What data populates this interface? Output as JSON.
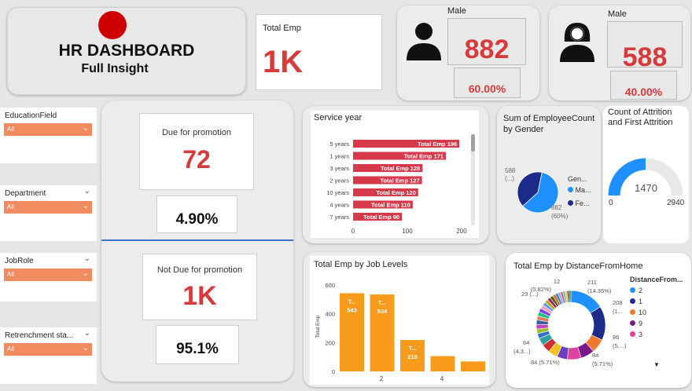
{
  "header": {
    "title": "HR DASHBOARD",
    "subtitle": "Full Insight",
    "logo_color": "#cc0000"
  },
  "total_emp": {
    "label": "Total Emp",
    "value": "1K"
  },
  "male_card": {
    "label": "Male",
    "value": "882",
    "pct": "60.00%"
  },
  "female_card": {
    "label": "Male",
    "value": "588",
    "pct": "40.00%"
  },
  "slicers": [
    {
      "title": "EducationField",
      "value": "All"
    },
    {
      "title": "Department",
      "value": "All"
    },
    {
      "title": "JobRole",
      "value": "All"
    },
    {
      "title": "Retrenchment sta...",
      "value": "All"
    }
  ],
  "promotion": {
    "due_label": "Due for promotion",
    "due_value": "72",
    "due_pct": "4.90%",
    "not_due_label": "Not Due for promotion",
    "not_due_value": "1K",
    "not_due_pct": "95.1%"
  },
  "service_year": {
    "title": "Service year",
    "bar_color": "#d63a4a",
    "bars": [
      {
        "category": "5 years",
        "label": "Total Emp 196",
        "value": 196
      },
      {
        "category": "1 years",
        "label": "Total Emp 171",
        "value": 171
      },
      {
        "category": "3 years",
        "label": "Total Emp 128",
        "value": 128
      },
      {
        "category": "2 years",
        "label": "Total Emp 127",
        "value": 127
      },
      {
        "category": "10 years",
        "label": "Total Emp 120",
        "value": 120
      },
      {
        "category": "4 years",
        "label": "Total Emp 110",
        "value": 110
      },
      {
        "category": "7 years",
        "label": "Total Emp 90",
        "value": 90
      }
    ],
    "ticks": [
      "0",
      "100",
      "200"
    ]
  },
  "gender_pie": {
    "title": "Sum of EmployeeCount by Gender",
    "label_female": "588",
    "label_female2": "(...)",
    "label_male": "882",
    "label_male2": "(60%)",
    "legend_title": "Gen...",
    "legend": [
      {
        "name": "Ma...",
        "color": "#1e90ff"
      },
      {
        "name": "Fe...",
        "color": "#1c2a8a"
      }
    ]
  },
  "attrition": {
    "title": "Count of Attrition and First Attrition",
    "value": "1470",
    "min": "0",
    "max": "2940",
    "fraction": 0.5,
    "color": "#1e90ff"
  },
  "job_levels": {
    "title": "Total Emp by Job Levels",
    "ylabel": "Total Emp",
    "bar_color": "#f89a1c",
    "bars": [
      {
        "label1": "T...",
        "label2": "543",
        "value": 543
      },
      {
        "label1": "T...",
        "label2": "534",
        "value": 534
      },
      {
        "label1": "T...",
        "label2": "218",
        "value": 218
      },
      {
        "label1": "",
        "label2": "",
        "value": 106
      },
      {
        "label1": "",
        "label2": "",
        "value": 69
      }
    ],
    "yticks": [
      "0",
      "200",
      "400",
      "600"
    ],
    "xticks": [
      "2",
      "4"
    ]
  },
  "distance": {
    "title": "Total Emp by DistanceFromHome",
    "legend_title": "DistanceFrom...",
    "legend": [
      {
        "name": "2",
        "color": "#1e90ff"
      },
      {
        "name": "1",
        "color": "#1c2a8a"
      },
      {
        "name": "10",
        "color": "#f07830"
      },
      {
        "name": "9",
        "color": "#7a1a8a"
      },
      {
        "name": "3",
        "color": "#e040a0"
      }
    ],
    "labels": [
      {
        "text": "12",
        "id": "l1"
      },
      {
        "text": "(0.82%)",
        "id": "l2"
      },
      {
        "text": "211",
        "id": "l3"
      },
      {
        "text": "(14.35%)",
        "id": "l4"
      },
      {
        "text": "208",
        "id": "l5"
      },
      {
        "text": "(1...",
        "id": "l6"
      },
      {
        "text": "23 (...)",
        "id": "l7"
      },
      {
        "text": "86",
        "id": "l8"
      },
      {
        "text": "(5....)",
        "id": "l9"
      },
      {
        "text": "64",
        "id": "l10"
      },
      {
        "text": "(4.3...)",
        "id": "l11"
      },
      {
        "text": "84",
        "id": "l12"
      },
      {
        "text": "(5.71%)",
        "id": "l13"
      },
      {
        "text": "84 (5.71%)",
        "id": "l14"
      }
    ],
    "slices": [
      211,
      208,
      86,
      84,
      84,
      64,
      59,
      52,
      46,
      30,
      29,
      28,
      27,
      26,
      25,
      24,
      23,
      22,
      21,
      20,
      19,
      18,
      16,
      16,
      15,
      14,
      12,
      12,
      12
    ],
    "colors": [
      "#1e90ff",
      "#1c2a8a",
      "#f07830",
      "#7a1a8a",
      "#e040a0",
      "#6a40c0",
      "#f0c020",
      "#d03030",
      "#30a0a0",
      "#3070d0",
      "#a0c030",
      "#c040c0",
      "#4060a0",
      "#e08060",
      "#20c080",
      "#8040e0",
      "#f0a0c0",
      "#60a0e0",
      "#c0a020",
      "#a02060",
      "#406020",
      "#e06020",
      "#2080c0",
      "#a0a0e0",
      "#c06080",
      "#60c0a0",
      "#e0c060",
      "#803030",
      "#308030"
    ]
  }
}
